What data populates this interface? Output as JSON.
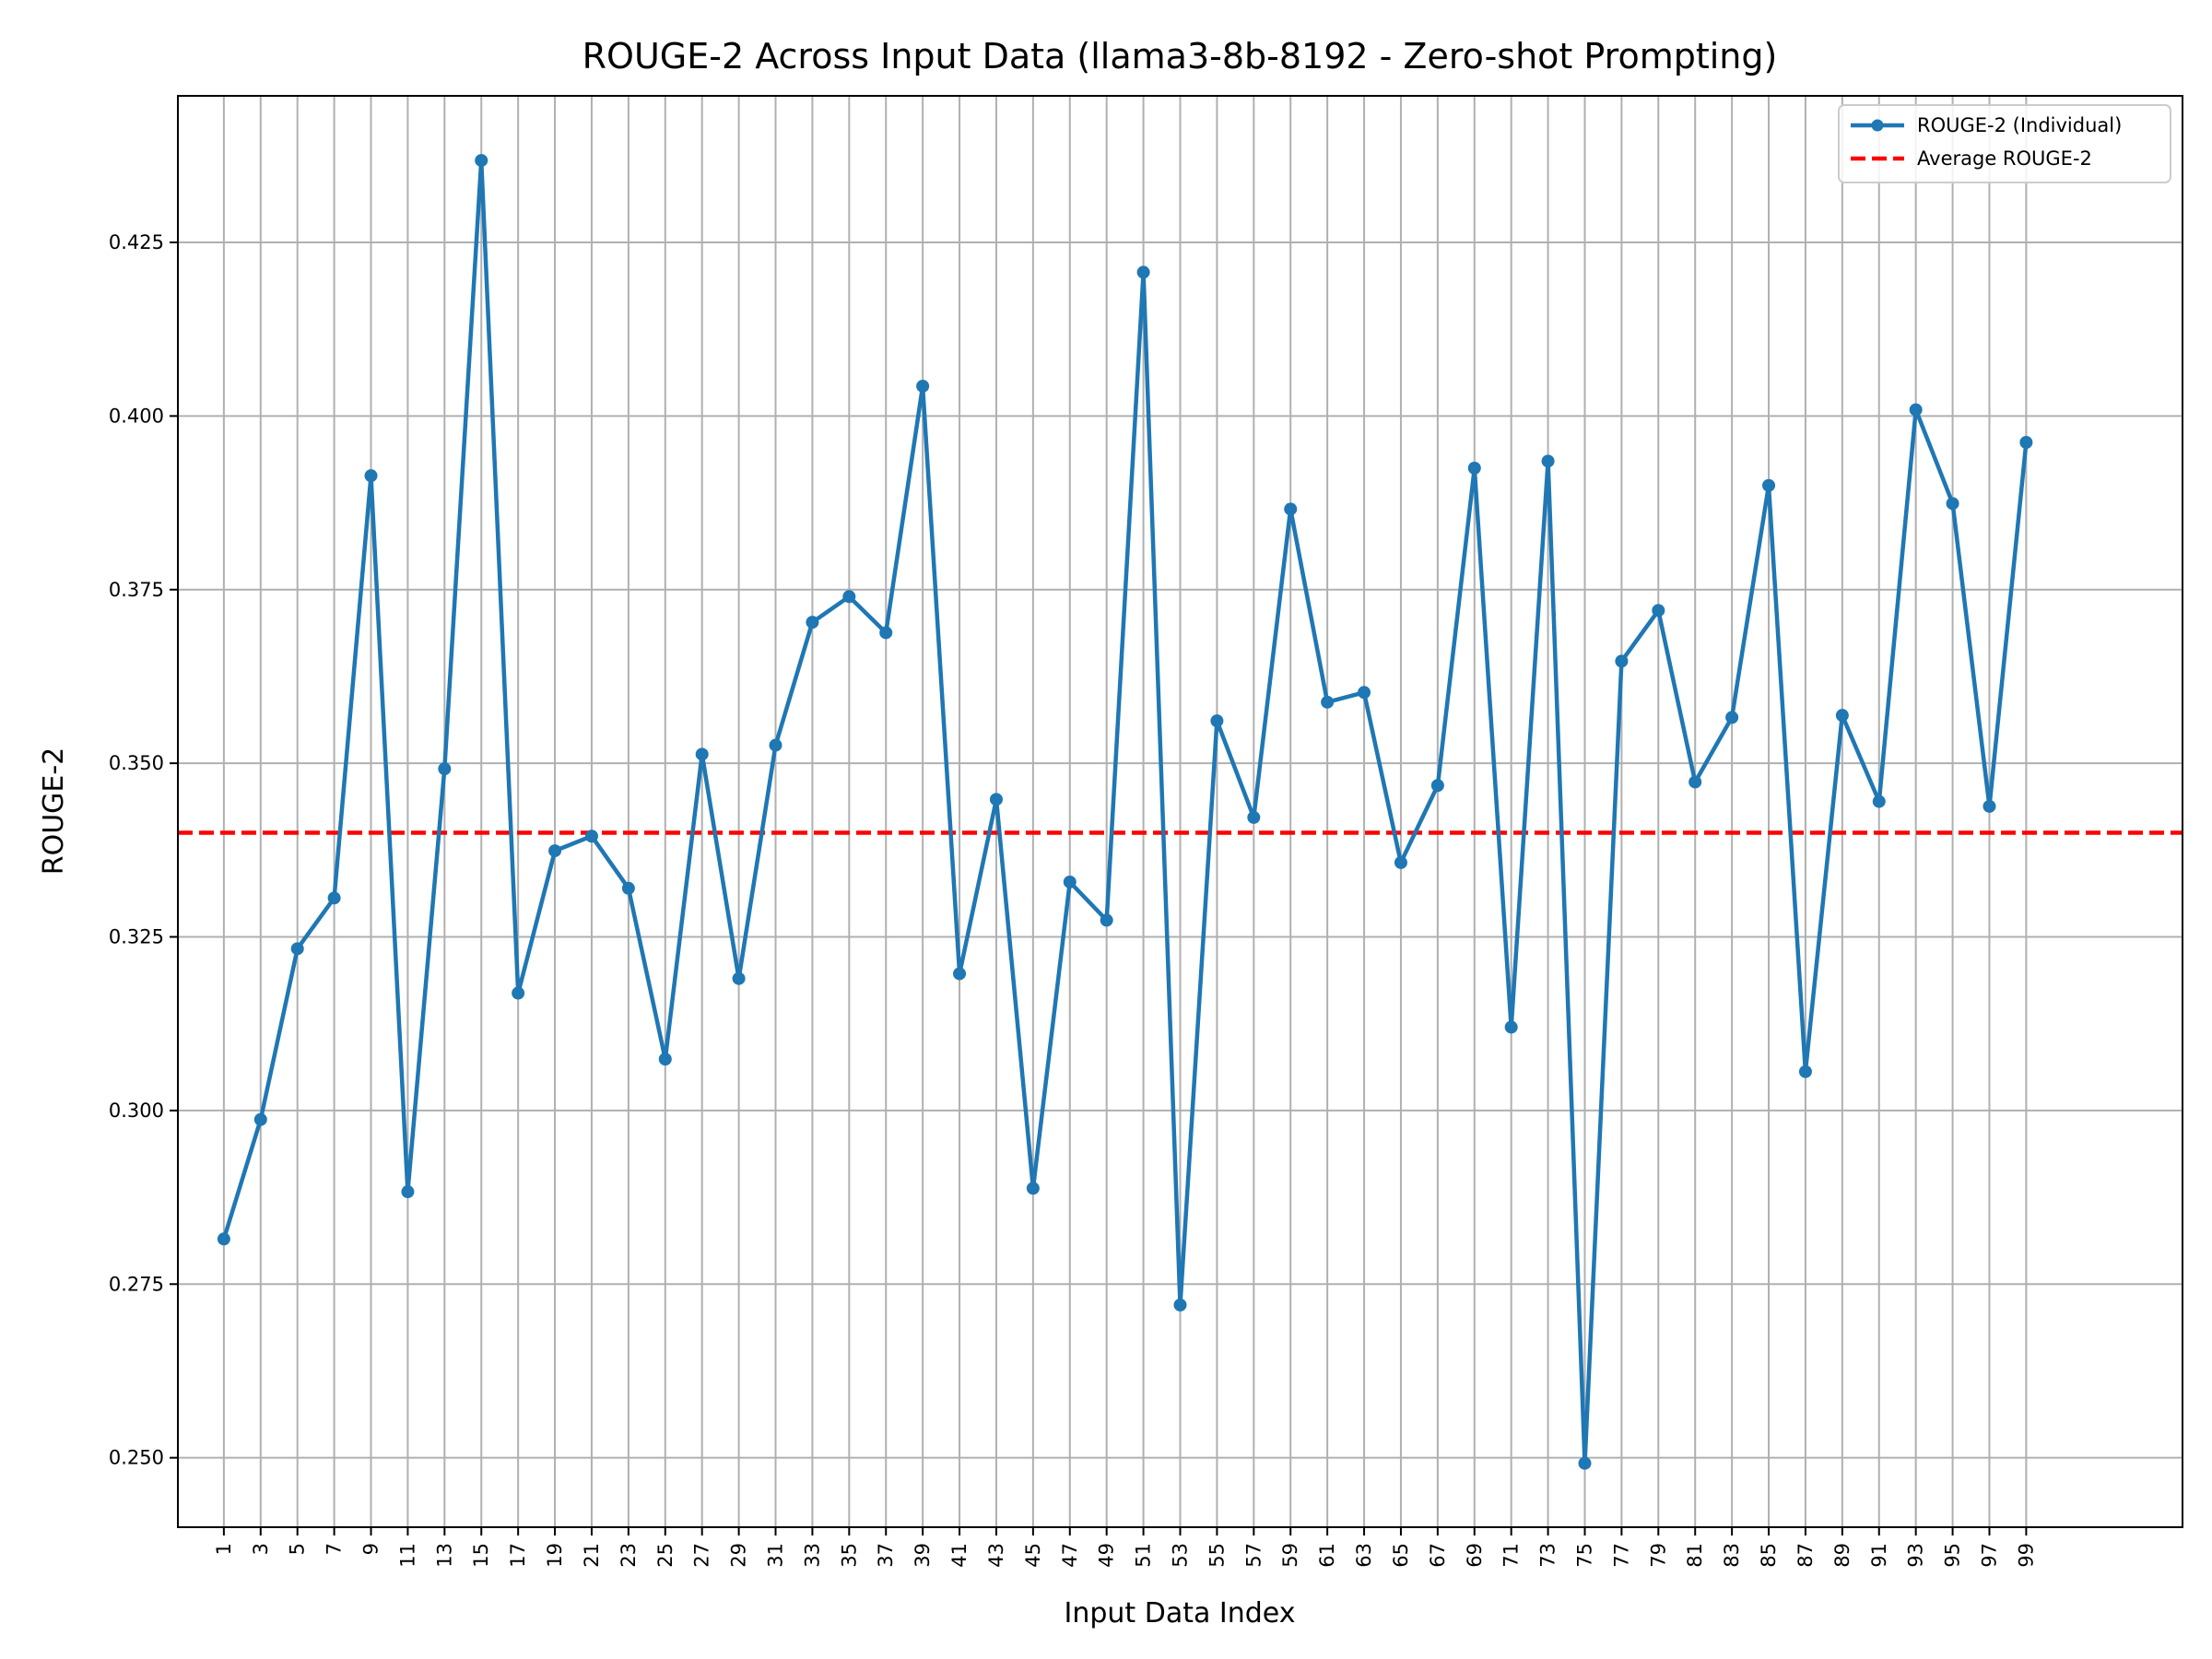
{
  "chart_data": {
    "type": "line",
    "title": "ROUGE-2 Across Input Data (llama3-8b-8192 - Zero-shot Prompting)",
    "xlabel": "Input Data Index",
    "ylabel": "ROUGE-2",
    "xlim": [
      -1.5,
      107.5
    ],
    "ylim": [
      0.24,
      0.4461
    ],
    "yticks": [
      0.25,
      0.275,
      0.3,
      0.325,
      0.35,
      0.375,
      0.4,
      0.425
    ],
    "ytick_labels": [
      "0.250",
      "0.275",
      "0.300",
      "0.325",
      "0.350",
      "0.375",
      "0.400",
      "0.425"
    ],
    "grid": true,
    "legend_position": "top-right",
    "series": [
      {
        "name": "ROUGE-2 (Individual)",
        "color": "#1f77b4",
        "style": "solid-with-markers",
        "x": [
          1,
          3,
          5,
          7,
          9,
          11,
          13,
          15,
          17,
          19,
          21,
          23,
          25,
          27,
          29,
          31,
          33,
          35,
          37,
          39,
          41,
          43,
          45,
          47,
          49,
          51,
          53,
          55,
          57,
          59,
          61,
          63,
          65,
          67,
          69,
          71,
          73,
          75,
          77,
          79,
          81,
          83,
          85,
          87,
          89,
          91,
          93,
          95,
          97,
          99
        ],
        "values": [
          0.2815,
          0.2987,
          0.3233,
          0.3306,
          0.3914,
          0.2883,
          0.3492,
          0.4368,
          0.3169,
          0.3374,
          0.3395,
          0.332,
          0.3074,
          0.3513,
          0.319,
          0.3526,
          0.3703,
          0.374,
          0.3688,
          0.4043,
          0.3197,
          0.3448,
          0.2888,
          0.3329,
          0.3274,
          0.4207,
          0.272,
          0.3561,
          0.3422,
          0.3866,
          0.3588,
          0.3602,
          0.3357,
          0.3468,
          0.3925,
          0.312,
          0.3935,
          0.2492,
          0.3647,
          0.372,
          0.3473,
          0.3566,
          0.39,
          0.3056,
          0.3569,
          0.3445,
          0.4009,
          0.3874,
          0.3438,
          0.3962
        ]
      },
      {
        "name": "Average ROUGE-2",
        "color": "#ff0000",
        "style": "dashed",
        "value": 0.34
      }
    ]
  }
}
